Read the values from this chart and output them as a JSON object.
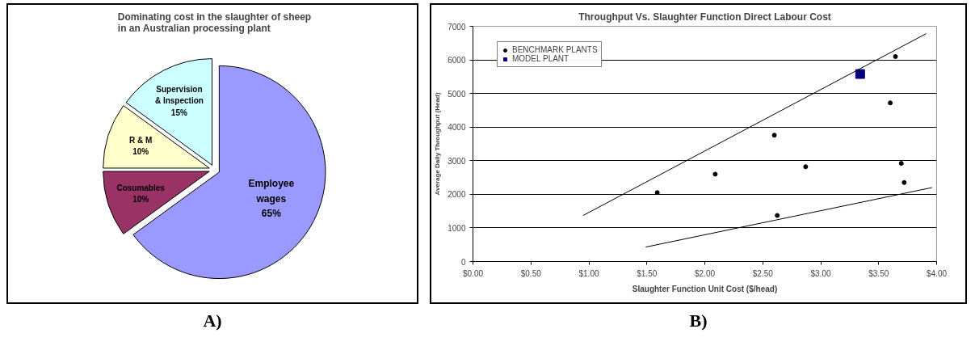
{
  "chart_data": [
    {
      "type": "pie",
      "title": "Dominating cost in the slaughter of sheep\nin an Australian processing plant",
      "categories": [
        "Employee wages",
        "Cosumables",
        "R & M",
        "Supervision & Inspection"
      ],
      "values": [
        65,
        10,
        10,
        15
      ],
      "value_labels": [
        "65%",
        "10%",
        "10%",
        "15%"
      ],
      "colors": [
        "#9999ff",
        "#993366",
        "#ffffcc",
        "#ccffff"
      ],
      "annotations": [
        "A)"
      ]
    },
    {
      "type": "scatter",
      "title": "Throughput Vs. Slaughter Function Direct Labour Cost",
      "xlabel": "Slaughter Function Unit Cost ($/head)",
      "ylabel": "Average Daily Throughput (Head)",
      "xlim": [
        0,
        4
      ],
      "ylim": [
        0,
        7000
      ],
      "xticks": [
        {
          "value": 0,
          "label": "$0.00"
        },
        {
          "value": 0.5,
          "label": "$0.50"
        },
        {
          "value": 1,
          "label": "$1.00"
        },
        {
          "value": 1.5,
          "label": "$1.50"
        },
        {
          "value": 2,
          "label": "$2.00"
        },
        {
          "value": 2.5,
          "label": "$2.50"
        },
        {
          "value": 3,
          "label": "$3.00"
        },
        {
          "value": 3.5,
          "label": "$3.50"
        },
        {
          "value": 4,
          "label": "$4.00"
        }
      ],
      "yticks": [
        0,
        1000,
        2000,
        3000,
        4000,
        5000,
        6000,
        7000
      ],
      "grid": "y",
      "legend": "top left",
      "series": [
        {
          "name": "BENCHMARK PLANTS",
          "color": "#000000",
          "marker": "circle",
          "x": [
            1.59,
            2.09,
            2.6,
            2.625,
            2.87,
            3.6,
            3.645,
            3.695,
            3.72
          ],
          "values": [
            2050,
            2600,
            3760,
            1370,
            2820,
            4720,
            6100,
            2920,
            2350
          ]
        },
        {
          "name": "MODEL PLANT",
          "color": "#000080",
          "marker": "square",
          "x": [
            3.34
          ],
          "values": [
            5580
          ]
        },
        {
          "type": "line",
          "color": "#000000",
          "x": [
            0.95,
            3.91
          ],
          "values": [
            1370,
            6780
          ]
        },
        {
          "type": "line",
          "color": "#000000",
          "x": [
            1.49,
            3.96
          ],
          "values": [
            430,
            2200
          ]
        }
      ],
      "annotations": [
        "B)"
      ]
    }
  ]
}
